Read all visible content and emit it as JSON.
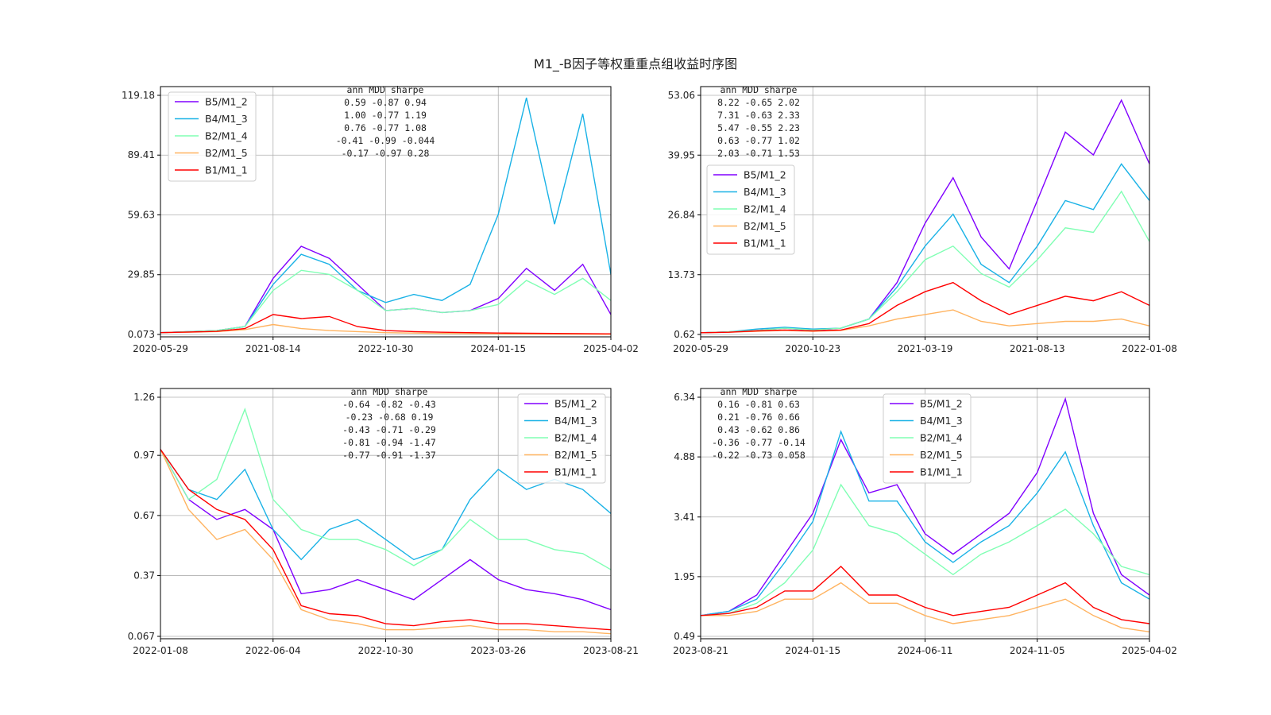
{
  "title": "M1_-B因子等权重重点组收益时序图",
  "chart_data": [
    {
      "type": "line",
      "panel": "top-left",
      "x_ticks": [
        "2020-05-29",
        "2021-08-14",
        "2022-10-30",
        "2024-01-15",
        "2025-04-02"
      ],
      "y_ticks": [
        "0.073",
        "29.85",
        "59.63",
        "89.41",
        "119.18"
      ],
      "ylim": [
        0.073,
        119.18
      ],
      "legend_position": "upper-left",
      "series": [
        {
          "name": "B5/M1_2",
          "color": "#8000ff",
          "values": [
            1,
            1.5,
            2,
            4,
            28,
            44,
            38,
            25,
            12,
            13,
            11,
            12,
            18,
            33,
            22,
            35,
            10
          ]
        },
        {
          "name": "B4/M1_3",
          "color": "#1ab2e6",
          "values": [
            1,
            1.5,
            2,
            4,
            25,
            40,
            35,
            22,
            16,
            20,
            17,
            25,
            60,
            118,
            55,
            110,
            30
          ]
        },
        {
          "name": "B2/M1_4",
          "color": "#80ffb4",
          "values": [
            1,
            1.5,
            2,
            4,
            22,
            32,
            30,
            22,
            12,
            13,
            11,
            12,
            15,
            27,
            20,
            28,
            17
          ]
        },
        {
          "name": "B2/M1_5",
          "color": "#ffb360",
          "values": [
            1,
            1.2,
            1.5,
            2.5,
            5,
            3,
            2,
            1.5,
            1,
            0.8,
            0.6,
            0.5,
            0.4,
            0.3,
            0.25,
            0.2,
            0.15
          ]
        },
        {
          "name": "B1/M1_1",
          "color": "#ff0000",
          "values": [
            1,
            1.3,
            1.6,
            3,
            10,
            8,
            9,
            4,
            2,
            1.5,
            1.2,
            1,
            0.8,
            0.7,
            0.6,
            0.5,
            0.4
          ]
        }
      ],
      "stats": {
        "header": [
          "ann",
          "MDD",
          "sharpe"
        ],
        "rows": [
          [
            "0.59",
            "-0.87",
            "0.94"
          ],
          [
            "1.00",
            "-0.77",
            "1.19"
          ],
          [
            "0.76",
            "-0.77",
            "1.08"
          ],
          [
            "-0.41",
            "-0.99",
            "-0.044"
          ],
          [
            "-0.17",
            "-0.97",
            "0.28"
          ]
        ]
      }
    },
    {
      "type": "line",
      "panel": "top-right",
      "x_ticks": [
        "2020-05-29",
        "2020-10-23",
        "2021-03-19",
        "2021-08-13",
        "2022-01-08"
      ],
      "y_ticks": [
        "0.62",
        "13.73",
        "26.84",
        "39.95",
        "53.06"
      ],
      "ylim": [
        0.62,
        53.06
      ],
      "legend_position": "center-left",
      "series": [
        {
          "name": "B5/M1_2",
          "color": "#8000ff",
          "values": [
            1,
            1.2,
            1.5,
            2,
            1.5,
            2,
            4,
            12,
            25,
            35,
            22,
            15,
            30,
            45,
            40,
            52,
            38
          ]
        },
        {
          "name": "B4/M1_3",
          "color": "#1ab2e6",
          "values": [
            1,
            1.2,
            1.8,
            2.2,
            1.8,
            2,
            4,
            11,
            20,
            27,
            16,
            12,
            20,
            30,
            28,
            38,
            30
          ]
        },
        {
          "name": "B2/M1_4",
          "color": "#80ffb4",
          "values": [
            1,
            1.2,
            1.5,
            2,
            1.6,
            2,
            4,
            10,
            17,
            20,
            14,
            11,
            17,
            24,
            23,
            32,
            21
          ]
        },
        {
          "name": "B2/M1_5",
          "color": "#ffb360",
          "values": [
            1,
            1.1,
            1.3,
            1.5,
            1.3,
            1.5,
            2.5,
            4,
            5,
            6,
            3.5,
            2.5,
            3,
            3.5,
            3.5,
            4,
            2.5
          ]
        },
        {
          "name": "B1/M1_1",
          "color": "#ff0000",
          "values": [
            1,
            1.1,
            1.4,
            1.6,
            1.4,
            1.6,
            3,
            7,
            10,
            12,
            8,
            5,
            7,
            9,
            8,
            10,
            7
          ]
        }
      ],
      "stats": {
        "header": [
          "ann",
          "MDD",
          "sharpe"
        ],
        "rows": [
          [
            "8.22",
            "-0.65",
            "2.02"
          ],
          [
            "7.31",
            "-0.63",
            "2.33"
          ],
          [
            "5.47",
            "-0.55",
            "2.23"
          ],
          [
            "0.63",
            "-0.77",
            "1.02"
          ],
          [
            "2.03",
            "-0.71",
            "1.53"
          ]
        ]
      }
    },
    {
      "type": "line",
      "panel": "bottom-left",
      "x_ticks": [
        "2022-01-08",
        "2022-06-04",
        "2022-10-30",
        "2023-03-26",
        "2023-08-21"
      ],
      "y_ticks": [
        "0.067",
        "0.37",
        "0.67",
        "0.97",
        "1.26"
      ],
      "ylim": [
        0.067,
        1.26
      ],
      "legend_position": "upper-right",
      "series": [
        {
          "name": "B5/M1_2",
          "color": "#8000ff",
          "values": [
            1.0,
            0.75,
            0.65,
            0.7,
            0.6,
            0.28,
            0.3,
            0.35,
            0.3,
            0.25,
            0.35,
            0.45,
            0.35,
            0.3,
            0.28,
            0.25,
            0.2
          ]
        },
        {
          "name": "B4/M1_3",
          "color": "#1ab2e6",
          "values": [
            1.0,
            0.8,
            0.75,
            0.9,
            0.6,
            0.45,
            0.6,
            0.65,
            0.55,
            0.45,
            0.5,
            0.75,
            0.9,
            0.8,
            0.85,
            0.8,
            0.68
          ]
        },
        {
          "name": "B2/M1_4",
          "color": "#80ffb4",
          "values": [
            1.0,
            0.75,
            0.85,
            1.2,
            0.75,
            0.6,
            0.55,
            0.55,
            0.5,
            0.42,
            0.5,
            0.65,
            0.55,
            0.55,
            0.5,
            0.48,
            0.4
          ]
        },
        {
          "name": "B2/M1_5",
          "color": "#ffb360",
          "values": [
            1.0,
            0.7,
            0.55,
            0.6,
            0.45,
            0.2,
            0.15,
            0.13,
            0.1,
            0.1,
            0.11,
            0.12,
            0.1,
            0.1,
            0.09,
            0.09,
            0.08
          ]
        },
        {
          "name": "B1/M1_1",
          "color": "#ff0000",
          "values": [
            1.0,
            0.8,
            0.7,
            0.65,
            0.5,
            0.22,
            0.18,
            0.17,
            0.13,
            0.12,
            0.14,
            0.15,
            0.13,
            0.13,
            0.12,
            0.11,
            0.1
          ]
        }
      ],
      "stats": {
        "header": [
          "ann",
          "MDD",
          "sharpe"
        ],
        "rows": [
          [
            "-0.64",
            "-0.82",
            "-0.43"
          ],
          [
            "-0.23",
            "-0.68",
            "0.19"
          ],
          [
            "-0.43",
            "-0.71",
            "-0.29"
          ],
          [
            "-0.81",
            "-0.94",
            "-1.47"
          ],
          [
            "-0.77",
            "-0.91",
            "-1.37"
          ]
        ]
      }
    },
    {
      "type": "line",
      "panel": "bottom-right",
      "x_ticks": [
        "2023-08-21",
        "2024-01-15",
        "2024-06-11",
        "2024-11-05",
        "2025-04-02"
      ],
      "y_ticks": [
        "0.49",
        "1.95",
        "3.41",
        "4.88",
        "6.34"
      ],
      "ylim": [
        0.49,
        6.34
      ],
      "legend_position": "upper-center",
      "series": [
        {
          "name": "B5/M1_2",
          "color": "#8000ff",
          "values": [
            1,
            1.1,
            1.5,
            2.5,
            3.5,
            5.3,
            4,
            4.2,
            3,
            2.5,
            3,
            3.5,
            4.5,
            6.3,
            3.5,
            2,
            1.5
          ]
        },
        {
          "name": "B4/M1_3",
          "color": "#1ab2e6",
          "values": [
            1,
            1.1,
            1.4,
            2.3,
            3.3,
            5.5,
            3.8,
            3.8,
            2.8,
            2.3,
            2.8,
            3.2,
            4,
            5,
            3.2,
            1.8,
            1.4
          ]
        },
        {
          "name": "B2/M1_4",
          "color": "#80ffb4",
          "values": [
            1,
            1.05,
            1.3,
            1.8,
            2.6,
            4.2,
            3.2,
            3,
            2.5,
            2,
            2.5,
            2.8,
            3.2,
            3.6,
            3,
            2.2,
            2
          ]
        },
        {
          "name": "B2/M1_5",
          "color": "#ffb360",
          "values": [
            1,
            1,
            1.1,
            1.4,
            1.4,
            1.8,
            1.3,
            1.3,
            1,
            0.8,
            0.9,
            1,
            1.2,
            1.4,
            1,
            0.7,
            0.6
          ]
        },
        {
          "name": "B1/M1_1",
          "color": "#ff0000",
          "values": [
            1,
            1.05,
            1.2,
            1.6,
            1.6,
            2.2,
            1.5,
            1.5,
            1.2,
            1,
            1.1,
            1.2,
            1.5,
            1.8,
            1.2,
            0.9,
            0.8
          ]
        }
      ],
      "stats": {
        "header": [
          "ann",
          "MDD",
          "sharpe"
        ],
        "rows": [
          [
            "0.16",
            "-0.81",
            "0.63"
          ],
          [
            "0.21",
            "-0.76",
            "0.66"
          ],
          [
            "0.43",
            "-0.62",
            "0.86"
          ],
          [
            "-0.36",
            "-0.77",
            "-0.14"
          ],
          [
            "-0.22",
            "-0.73",
            "0.058"
          ]
        ]
      }
    }
  ]
}
